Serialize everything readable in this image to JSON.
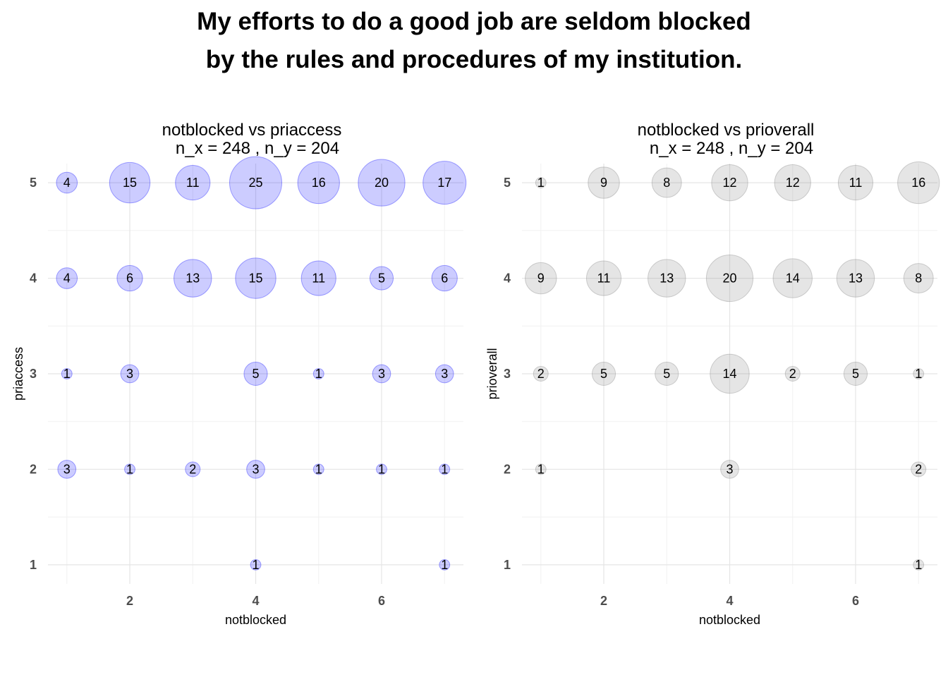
{
  "title": {
    "lines": [
      "My efforts to do a good job are seldom blocked",
      "by the rules and procedures of my institution."
    ]
  },
  "chart_data": [
    {
      "type": "scatter",
      "title": "notblocked vs priaccess",
      "subtitle": "n_x = 248 , n_y = 204",
      "xlabel": "notblocked",
      "ylabel": "priaccess",
      "x_ticks": [
        2,
        4,
        6
      ],
      "y_ticks": [
        1,
        2,
        3,
        4,
        5
      ],
      "xlim": [
        0.7,
        7.3
      ],
      "ylim": [
        0.8,
        5.2
      ],
      "bubble_color": "#0000ff",
      "points": [
        {
          "x": 1,
          "y": 5,
          "n": 4
        },
        {
          "x": 2,
          "y": 5,
          "n": 15
        },
        {
          "x": 3,
          "y": 5,
          "n": 11
        },
        {
          "x": 4,
          "y": 5,
          "n": 25
        },
        {
          "x": 5,
          "y": 5,
          "n": 16
        },
        {
          "x": 6,
          "y": 5,
          "n": 20
        },
        {
          "x": 7,
          "y": 5,
          "n": 17
        },
        {
          "x": 1,
          "y": 4,
          "n": 4
        },
        {
          "x": 2,
          "y": 4,
          "n": 6
        },
        {
          "x": 3,
          "y": 4,
          "n": 13
        },
        {
          "x": 4,
          "y": 4,
          "n": 15
        },
        {
          "x": 5,
          "y": 4,
          "n": 11
        },
        {
          "x": 6,
          "y": 4,
          "n": 5
        },
        {
          "x": 7,
          "y": 4,
          "n": 6
        },
        {
          "x": 1,
          "y": 3,
          "n": 1
        },
        {
          "x": 2,
          "y": 3,
          "n": 3
        },
        {
          "x": 4,
          "y": 3,
          "n": 5
        },
        {
          "x": 5,
          "y": 3,
          "n": 1
        },
        {
          "x": 6,
          "y": 3,
          "n": 3
        },
        {
          "x": 7,
          "y": 3,
          "n": 3
        },
        {
          "x": 1,
          "y": 2,
          "n": 3
        },
        {
          "x": 2,
          "y": 2,
          "n": 1
        },
        {
          "x": 3,
          "y": 2,
          "n": 2
        },
        {
          "x": 4,
          "y": 2,
          "n": 3
        },
        {
          "x": 5,
          "y": 2,
          "n": 1
        },
        {
          "x": 6,
          "y": 2,
          "n": 1
        },
        {
          "x": 7,
          "y": 2,
          "n": 1
        },
        {
          "x": 4,
          "y": 1,
          "n": 1
        },
        {
          "x": 7,
          "y": 1,
          "n": 1
        }
      ]
    },
    {
      "type": "scatter",
      "title": "notblocked vs prioverall",
      "subtitle": "n_x = 248 , n_y = 204",
      "xlabel": "notblocked",
      "ylabel": "prioverall",
      "x_ticks": [
        2,
        4,
        6
      ],
      "y_ticks": [
        1,
        2,
        3,
        4,
        5
      ],
      "xlim": [
        0.7,
        7.3
      ],
      "ylim": [
        0.8,
        5.2
      ],
      "bubble_color": "#7f7f7f",
      "points": [
        {
          "x": 1,
          "y": 5,
          "n": 1
        },
        {
          "x": 2,
          "y": 5,
          "n": 9
        },
        {
          "x": 3,
          "y": 5,
          "n": 8
        },
        {
          "x": 4,
          "y": 5,
          "n": 12
        },
        {
          "x": 5,
          "y": 5,
          "n": 12
        },
        {
          "x": 6,
          "y": 5,
          "n": 11
        },
        {
          "x": 7,
          "y": 5,
          "n": 16
        },
        {
          "x": 1,
          "y": 4,
          "n": 9
        },
        {
          "x": 2,
          "y": 4,
          "n": 11
        },
        {
          "x": 3,
          "y": 4,
          "n": 13
        },
        {
          "x": 4,
          "y": 4,
          "n": 20
        },
        {
          "x": 5,
          "y": 4,
          "n": 14
        },
        {
          "x": 6,
          "y": 4,
          "n": 13
        },
        {
          "x": 7,
          "y": 4,
          "n": 8
        },
        {
          "x": 1,
          "y": 3,
          "n": 2
        },
        {
          "x": 2,
          "y": 3,
          "n": 5
        },
        {
          "x": 3,
          "y": 3,
          "n": 5
        },
        {
          "x": 4,
          "y": 3,
          "n": 14
        },
        {
          "x": 5,
          "y": 3,
          "n": 2
        },
        {
          "x": 6,
          "y": 3,
          "n": 5
        },
        {
          "x": 7,
          "y": 3,
          "n": 1
        },
        {
          "x": 1,
          "y": 2,
          "n": 1
        },
        {
          "x": 4,
          "y": 2,
          "n": 3
        },
        {
          "x": 7,
          "y": 2,
          "n": 2
        },
        {
          "x": 7,
          "y": 1,
          "n": 1
        }
      ]
    }
  ]
}
